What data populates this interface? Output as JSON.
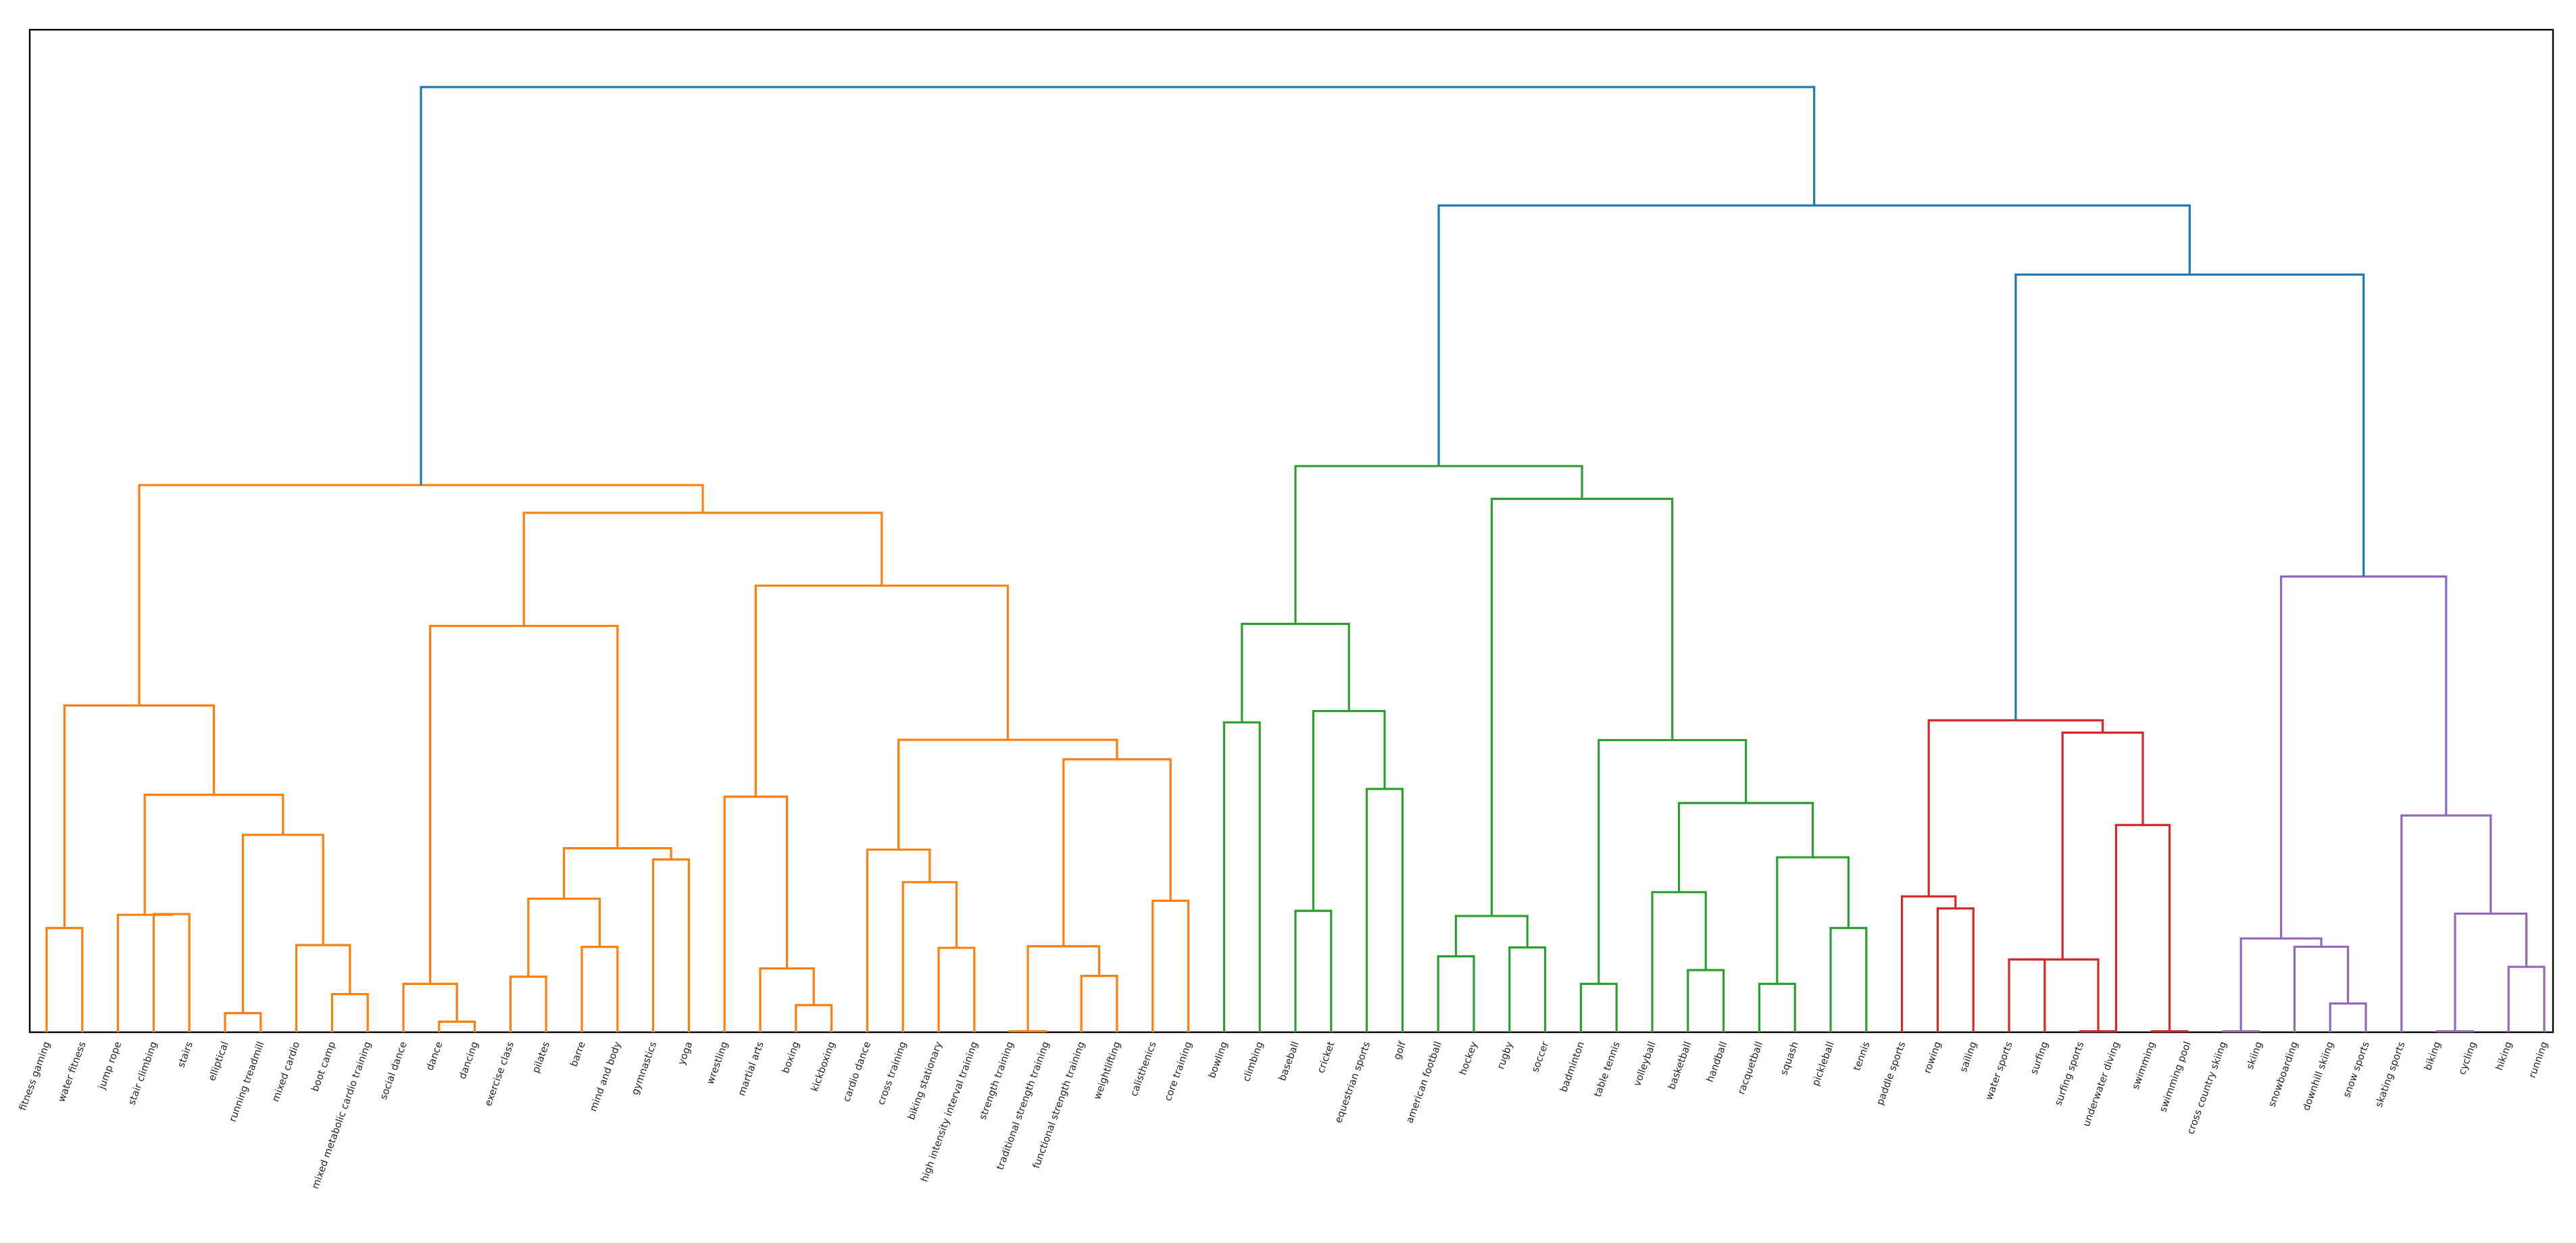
{
  "chart_data": {
    "type": "dendrogram",
    "title": "",
    "xlabel": "",
    "ylabel": "",
    "axes_visible": false,
    "leaves": [
      "fitness gaming",
      "water fitness",
      "jump rope",
      "stair climbing",
      "stairs",
      "elliptical",
      "running treadmill",
      "mixed cardio",
      "boot camp",
      "mixed metabolic cardio training",
      "social dance",
      "dance",
      "dancing",
      "exercise class",
      "pilates",
      "barre",
      "mind and body",
      "gymnastics",
      "yoga",
      "wrestling",
      "martial arts",
      "boxing",
      "kickboxing",
      "cardio dance",
      "cross training",
      "biking stationary",
      "high intensity interval training",
      "strength training",
      "traditional strength training",
      "functional strength training",
      "weightlifting",
      "calisthenics",
      "core training",
      "bowling",
      "climbing",
      "baseball",
      "cricket",
      "equestrian sports",
      "golf",
      "american football",
      "hockey",
      "rugby",
      "soccer",
      "badminton",
      "table tennis",
      "volleyball",
      "basketball",
      "handball",
      "racquetball",
      "squash",
      "pickleball",
      "tennis",
      "paddle sports",
      "rowing",
      "sailing",
      "water sports",
      "surfing",
      "surfing sports",
      "underwater diving",
      "swimming",
      "swimming pool",
      "cross country skiing",
      "skiing",
      "snowboarding",
      "downhill skiing",
      "snow sports",
      "skating sports",
      "biking",
      "cycling",
      "hiking",
      "running"
    ],
    "colors": {
      "C1": "#ff7f0e",
      "C2": "#2ca02c",
      "C3": "#d62728",
      "C4": "#9467bd",
      "root": "#1f77b4"
    },
    "merges": [
      {
        "id": "A1",
        "left": "L0",
        "right": "L1",
        "height": 0.1058,
        "color": "C1"
      },
      {
        "id": "A2",
        "left": "L3",
        "right": "L4",
        "height": 0.12,
        "color": "C1"
      },
      {
        "id": "A3",
        "left": "L2",
        "right": "A2",
        "height": 0.1192,
        "color": "C1"
      },
      {
        "id": "A4",
        "left": "L5",
        "right": "L6",
        "height": 0.0194,
        "color": "C1"
      },
      {
        "id": "A5",
        "left": "L8",
        "right": "L9",
        "height": 0.0387,
        "color": "C1"
      },
      {
        "id": "A6",
        "left": "L7",
        "right": "A5",
        "height": 0.0885,
        "color": "C1"
      },
      {
        "id": "A7",
        "left": "A4",
        "right": "A6",
        "height": 0.2004,
        "color": "C1"
      },
      {
        "id": "A8",
        "left": "A3",
        "right": "A7",
        "height": 0.2411,
        "color": "C1"
      },
      {
        "id": "A9",
        "left": "A1",
        "right": "A8",
        "height": 0.3318,
        "color": "C1"
      },
      {
        "id": "B1",
        "left": "L11",
        "right": "L12",
        "height": 0.0107,
        "color": "C1"
      },
      {
        "id": "B2",
        "left": "L10",
        "right": "B1",
        "height": 0.0491,
        "color": "C1"
      },
      {
        "id": "B3",
        "left": "L13",
        "right": "L14",
        "height": 0.0564,
        "color": "C1"
      },
      {
        "id": "B4",
        "left": "L15",
        "right": "L16",
        "height": 0.0867,
        "color": "C1"
      },
      {
        "id": "B5",
        "left": "B3",
        "right": "B4",
        "height": 0.1356,
        "color": "C1"
      },
      {
        "id": "B6",
        "left": "L17",
        "right": "L18",
        "height": 0.1754,
        "color": "C1"
      },
      {
        "id": "B7",
        "left": "B5",
        "right": "B6",
        "height": 0.1868,
        "color": "C1"
      },
      {
        "id": "B8",
        "left": "B2",
        "right": "B7",
        "height": 0.4125,
        "color": "C1"
      },
      {
        "id": "B9",
        "left": "L21",
        "right": "L22",
        "height": 0.0275,
        "color": "C1"
      },
      {
        "id": "B10",
        "left": "L20",
        "right": "B9",
        "height": 0.0648,
        "color": "C1"
      },
      {
        "id": "B11",
        "left": "L19",
        "right": "B10",
        "height": 0.2392,
        "color": "C1"
      },
      {
        "id": "B12",
        "left": "L25",
        "right": "L26",
        "height": 0.0857,
        "color": "C1"
      },
      {
        "id": "B13",
        "left": "L24",
        "right": "B12",
        "height": 0.1524,
        "color": "C1"
      },
      {
        "id": "B14",
        "left": "L23",
        "right": "B13",
        "height": 0.1854,
        "color": "C1"
      },
      {
        "id": "B15",
        "left": "L27",
        "right": "L28",
        "height": 0.001,
        "color": "C1"
      },
      {
        "id": "B16",
        "left": "L29",
        "right": "L30",
        "height": 0.0572,
        "color": "C1"
      },
      {
        "id": "B17",
        "left": "B15",
        "right": "B16",
        "height": 0.0873,
        "color": "C1"
      },
      {
        "id": "B18",
        "left": "L31",
        "right": "L32",
        "height": 0.1335,
        "color": "C1"
      },
      {
        "id": "B19",
        "left": "B17",
        "right": "B18",
        "height": 0.2771,
        "color": "C1"
      },
      {
        "id": "B20",
        "left": "B14",
        "right": "B19",
        "height": 0.2969,
        "color": "C1"
      },
      {
        "id": "B21",
        "left": "B11",
        "right": "B20",
        "height": 0.4534,
        "color": "C1"
      },
      {
        "id": "B22",
        "left": "B8",
        "right": "B21",
        "height": 0.5274,
        "color": "C1"
      },
      {
        "id": "R1",
        "left": "A9",
        "right": "B22",
        "height": 0.5555,
        "color": "C1"
      },
      {
        "id": "G1",
        "left": "L33",
        "right": "L34",
        "height": 0.3146,
        "color": "C2"
      },
      {
        "id": "G2",
        "left": "L35",
        "right": "L36",
        "height": 0.1233,
        "color": "C2"
      },
      {
        "id": "G3",
        "left": "L37",
        "right": "L38",
        "height": 0.247,
        "color": "C2"
      },
      {
        "id": "G4",
        "left": "G2",
        "right": "G3",
        "height": 0.3261,
        "color": "C2"
      },
      {
        "id": "G5",
        "left": "G1",
        "right": "G4",
        "height": 0.4146,
        "color": "C2"
      },
      {
        "id": "G6",
        "left": "L39",
        "right": "L40",
        "height": 0.0771,
        "color": "C2"
      },
      {
        "id": "G7",
        "left": "L41",
        "right": "L42",
        "height": 0.0861,
        "color": "C2"
      },
      {
        "id": "G8",
        "left": "G6",
        "right": "G7",
        "height": 0.118,
        "color": "C2"
      },
      {
        "id": "G9",
        "left": "L43",
        "right": "L44",
        "height": 0.0491,
        "color": "C2"
      },
      {
        "id": "G10",
        "left": "L46",
        "right": "L47",
        "height": 0.0631,
        "color": "C2"
      },
      {
        "id": "G11",
        "left": "L45",
        "right": "G10",
        "height": 0.1422,
        "color": "C2"
      },
      {
        "id": "G12",
        "left": "L48",
        "right": "L49",
        "height": 0.0491,
        "color": "C2"
      },
      {
        "id": "G13",
        "left": "L50",
        "right": "L51",
        "height": 0.1058,
        "color": "C2"
      },
      {
        "id": "G14",
        "left": "G12",
        "right": "G13",
        "height": 0.1776,
        "color": "C2"
      },
      {
        "id": "G15",
        "left": "G11",
        "right": "G14",
        "height": 0.2327,
        "color": "C2"
      },
      {
        "id": "G16",
        "left": "G9",
        "right": "G15",
        "height": 0.2966,
        "color": "C2"
      },
      {
        "id": "G17",
        "left": "G8",
        "right": "G16",
        "height": 0.5416,
        "color": "C2"
      },
      {
        "id": "G18",
        "left": "G5",
        "right": "G17",
        "height": 0.5748,
        "color": "C2"
      },
      {
        "id": "P1",
        "left": "L53",
        "right": "L54",
        "height": 0.1257,
        "color": "C3"
      },
      {
        "id": "P2",
        "left": "L52",
        "right": "P1",
        "height": 0.1379,
        "color": "C3"
      },
      {
        "id": "P3",
        "left": "L55",
        "right": "L56",
        "height": 0.0739,
        "color": "C3"
      },
      {
        "id": "P4",
        "left": "L57",
        "right": "L58",
        "height": 0.001,
        "color": "C3"
      },
      {
        "id": "P5",
        "left": "P3",
        "right": "P4",
        "height": 0.0739,
        "color": "C3"
      },
      {
        "id": "P6",
        "left": "L59",
        "right": "L60",
        "height": 0.001,
        "color": "C3"
      },
      {
        "id": "P7",
        "left": "L58b",
        "right": "P6",
        "height": 0.2104,
        "color": "C3"
      },
      {
        "id": "P8",
        "left": "P5",
        "right": "P7",
        "height": 0.3042,
        "color": "C3"
      },
      {
        "id": "P9",
        "left": "P2",
        "right": "P8",
        "height": 0.3167,
        "color": "C3"
      },
      {
        "id": "V1",
        "left": "L61",
        "right": "L62",
        "height": 0.001,
        "color": "C4"
      },
      {
        "id": "V2",
        "left": "L64",
        "right": "L65",
        "height": 0.0292,
        "color": "C4"
      },
      {
        "id": "V3",
        "left": "L63",
        "right": "V2",
        "height": 0.0868,
        "color": "C4"
      },
      {
        "id": "V4",
        "left": "V1",
        "right": "V3",
        "height": 0.0952,
        "color": "C4"
      },
      {
        "id": "V5",
        "left": "L67",
        "right": "L68",
        "height": 0.001,
        "color": "C4"
      },
      {
        "id": "V6",
        "left": "L69",
        "right": "L70",
        "height": 0.0664,
        "color": "C4"
      },
      {
        "id": "V7",
        "left": "V5",
        "right": "V6",
        "height": 0.1204,
        "color": "C4"
      },
      {
        "id": "V8",
        "left": "L66",
        "right": "V7",
        "height": 0.2201,
        "color": "C4"
      },
      {
        "id": "V9",
        "left": "V4",
        "right": "V8",
        "height": 0.4627,
        "color": "C4"
      },
      {
        "id": "R2",
        "left": "P9",
        "right": "V9",
        "height": 0.7692,
        "color": "root"
      },
      {
        "id": "R3",
        "left": "G18",
        "right": "R2",
        "height": 0.8394,
        "color": "root"
      },
      {
        "id": "R4",
        "left": "R1",
        "right": "R3",
        "height": 0.9596,
        "color": "root"
      }
    ],
    "ylim": [
      0,
      1.0
    ]
  }
}
